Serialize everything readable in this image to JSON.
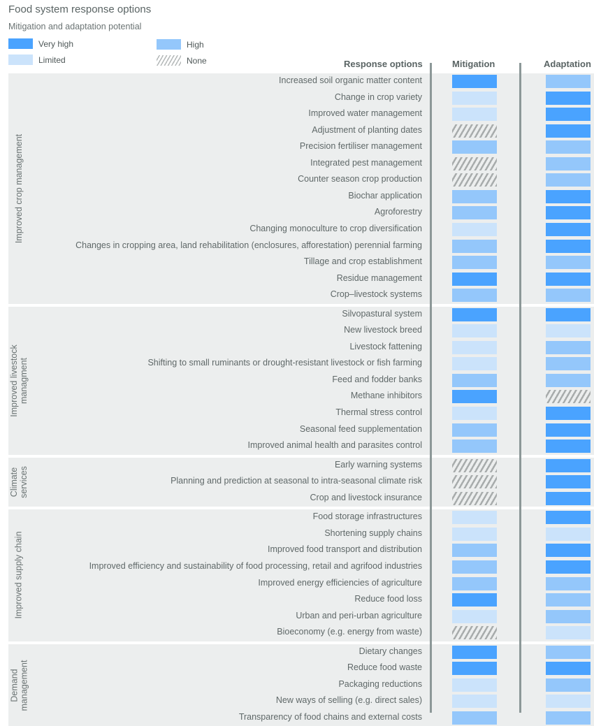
{
  "title": "Food system response options",
  "subtitle": "Mitigation and adaptation potential",
  "legend": [
    {
      "key": "VH",
      "label": "Very high"
    },
    {
      "key": "H",
      "label": "High"
    },
    {
      "key": "L",
      "label": "Limited"
    },
    {
      "key": "N",
      "label": "None"
    }
  ],
  "colors": {
    "VH": "#4aa3ff",
    "H": "#94c7fb",
    "L": "#cbe3fb",
    "N_stripe": "#a8acac",
    "background": "#eceeee",
    "divider": "#8c9898"
  },
  "headers": {
    "options": "Response options",
    "mitigation": "Mitigation",
    "adaptation": "Adaptation"
  },
  "chart_data": {
    "type": "table",
    "title": "Food system response options",
    "subtitle": "Mitigation and adaptation potential",
    "columns": [
      "Mitigation",
      "Adaptation"
    ],
    "scale": {
      "VH": "Very high",
      "H": "High",
      "L": "Limited",
      "N": "None"
    },
    "groups": [
      {
        "name": "Improved crop management",
        "rows": [
          {
            "option": "Increased soil organic matter content",
            "mitigation": "VH",
            "adaptation": "H"
          },
          {
            "option": "Change in crop variety",
            "mitigation": "L",
            "adaptation": "VH"
          },
          {
            "option": "Improved water management",
            "mitigation": "L",
            "adaptation": "VH"
          },
          {
            "option": "Adjustment of planting dates",
            "mitigation": "N",
            "adaptation": "VH"
          },
          {
            "option": "Precision fertiliser management",
            "mitigation": "H",
            "adaptation": "H"
          },
          {
            "option": "Integrated pest management",
            "mitigation": "N",
            "adaptation": "H"
          },
          {
            "option": "Counter season crop production",
            "mitigation": "N",
            "adaptation": "H"
          },
          {
            "option": "Biochar application",
            "mitigation": "H",
            "adaptation": "VH"
          },
          {
            "option": "Agroforestry",
            "mitigation": "H",
            "adaptation": "VH"
          },
          {
            "option": "Changing monoculture to crop diversification",
            "mitigation": "L",
            "adaptation": "VH"
          },
          {
            "option": "Changes in cropping area, land rehabilitation (enclosures, afforestation) perennial farming",
            "mitigation": "H",
            "adaptation": "VH"
          },
          {
            "option": "Tillage and crop establishment",
            "mitigation": "H",
            "adaptation": "H"
          },
          {
            "option": "Residue management",
            "mitigation": "VH",
            "adaptation": "VH"
          },
          {
            "option": "Crop–livestock systems",
            "mitigation": "H",
            "adaptation": "H"
          }
        ]
      },
      {
        "name": "Improved livestock managment",
        "rows": [
          {
            "option": "Silvopastural system",
            "mitigation": "VH",
            "adaptation": "VH"
          },
          {
            "option": "New livestock breed",
            "mitigation": "L",
            "adaptation": "L"
          },
          {
            "option": "Livestock fattening",
            "mitigation": "L",
            "adaptation": "H"
          },
          {
            "option": "Shifting to small ruminants or drought-resistant livestock or fish farming",
            "mitigation": "L",
            "adaptation": "H"
          },
          {
            "option": "Feed and fodder banks",
            "mitigation": "H",
            "adaptation": "H"
          },
          {
            "option": "Methane inhibitors",
            "mitigation": "VH",
            "adaptation": "N"
          },
          {
            "option": "Thermal stress control",
            "mitigation": "L",
            "adaptation": "VH"
          },
          {
            "option": "Seasonal feed supplementation",
            "mitigation": "H",
            "adaptation": "VH"
          },
          {
            "option": "Improved animal health and parasites control",
            "mitigation": "H",
            "adaptation": "VH"
          }
        ]
      },
      {
        "name": "Climate services",
        "rows": [
          {
            "option": "Early warning systems",
            "mitigation": "N",
            "adaptation": "VH"
          },
          {
            "option": "Planning and prediction at seasonal to intra-seasonal climate risk",
            "mitigation": "N",
            "adaptation": "VH"
          },
          {
            "option": "Crop and livestock insurance",
            "mitigation": "N",
            "adaptation": "VH"
          }
        ]
      },
      {
        "name": "Improved supply chain",
        "rows": [
          {
            "option": "Food storage infrastructures",
            "mitigation": "L",
            "adaptation": "VH"
          },
          {
            "option": "Shortening supply chains",
            "mitigation": "L",
            "adaptation": "L"
          },
          {
            "option": "Improved food transport and distribution",
            "mitigation": "H",
            "adaptation": "VH"
          },
          {
            "option": "Improved efficiency and sustainability of food processing, retail and agrifood industries",
            "mitigation": "H",
            "adaptation": "VH"
          },
          {
            "option": "Improved energy efficiencies of agriculture",
            "mitigation": "H",
            "adaptation": "H"
          },
          {
            "option": "Reduce food loss",
            "mitigation": "VH",
            "adaptation": "H"
          },
          {
            "option": "Urban and peri-urban agriculture",
            "mitigation": "L",
            "adaptation": "H"
          },
          {
            "option": "Bioeconomy (e.g. energy from waste)",
            "mitigation": "N",
            "adaptation": "L"
          }
        ]
      },
      {
        "name": "Demand management",
        "rows": [
          {
            "option": "Dietary changes",
            "mitigation": "VH",
            "adaptation": "H"
          },
          {
            "option": "Reduce food waste",
            "mitigation": "VH",
            "adaptation": "VH"
          },
          {
            "option": "Packaging reductions",
            "mitigation": "L",
            "adaptation": "H"
          },
          {
            "option": "New ways of selling (e.g. direct sales)",
            "mitigation": "L",
            "adaptation": "L"
          },
          {
            "option": "Transparency of food chains and external costs",
            "mitigation": "H",
            "adaptation": "H"
          }
        ]
      }
    ]
  }
}
